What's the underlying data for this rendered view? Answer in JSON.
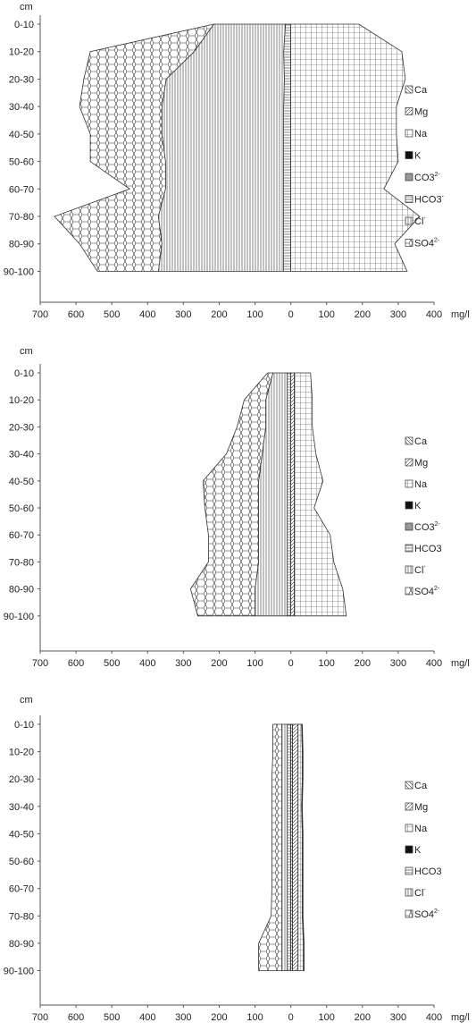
{
  "chart_data": [
    {
      "type": "area",
      "ylabel": "cm",
      "xlabel": "mg/l",
      "depths": [
        "0-10",
        "10-20",
        "20-30",
        "30-40",
        "40-50",
        "50-60",
        "60-70",
        "70-80",
        "80-90",
        "90-100"
      ],
      "xticks": [
        "700",
        "600",
        "500",
        "400",
        "300",
        "200",
        "100",
        "0",
        "100",
        "200",
        "300",
        "400"
      ],
      "xlim": [
        -700,
        400
      ],
      "cations": [
        {
          "name": "Ca",
          "values": [
            0,
            0,
            0,
            0,
            0,
            0,
            0,
            0,
            0,
            0
          ]
        },
        {
          "name": "Mg",
          "values": [
            0,
            0,
            0,
            0,
            0,
            0,
            0,
            0,
            0,
            0
          ]
        },
        {
          "name": "Na",
          "values": [
            190,
            310,
            320,
            295,
            295,
            300,
            260,
            360,
            290,
            325
          ]
        },
        {
          "name": "K",
          "values": [
            0,
            0,
            0,
            0,
            0,
            0,
            0,
            0,
            0,
            0
          ]
        }
      ],
      "anions": [
        {
          "name": "CO3",
          "values": [
            0,
            0,
            0,
            0,
            0,
            0,
            0,
            0,
            0,
            0
          ]
        },
        {
          "name": "HCO3",
          "values": [
            15,
            20,
            18,
            20,
            20,
            20,
            20,
            20,
            20,
            20
          ]
        },
        {
          "name": "Cl",
          "values": [
            200,
            250,
            330,
            340,
            340,
            330,
            330,
            350,
            340,
            350
          ]
        },
        {
          "name": "SO4",
          "values": [
            0,
            290,
            230,
            230,
            200,
            210,
            100,
            290,
            230,
            170
          ]
        }
      ],
      "legend": [
        {
          "label": "Ca",
          "pattern": "diag-back"
        },
        {
          "label": "Mg",
          "pattern": "diag-fwd"
        },
        {
          "label": "Na",
          "pattern": "grid"
        },
        {
          "label": "K",
          "pattern": "solid"
        },
        {
          "label": "CO3",
          "sup": "2-",
          "pattern": "gray"
        },
        {
          "label": "HCO3",
          "sup": "-",
          "pattern": "hlines"
        },
        {
          "label": "Cl",
          "sup": "-",
          "pattern": "vlines"
        },
        {
          "label": "SO4",
          "sup": "2-",
          "pattern": "hex"
        }
      ]
    },
    {
      "type": "area",
      "ylabel": "cm",
      "xlabel": "mg/l",
      "depths": [
        "0-10",
        "10-20",
        "20-30",
        "30-40",
        "40-50",
        "50-60",
        "60-70",
        "70-80",
        "80-90",
        "90-100"
      ],
      "xticks": [
        "700",
        "600",
        "500",
        "400",
        "300",
        "200",
        "100",
        "0",
        "100",
        "200",
        "300",
        "400"
      ],
      "xlim": [
        -700,
        400
      ],
      "cations": [
        {
          "name": "Ca",
          "values": [
            0,
            0,
            0,
            0,
            0,
            0,
            0,
            0,
            0,
            0
          ]
        },
        {
          "name": "Mg",
          "values": [
            10,
            10,
            10,
            10,
            10,
            10,
            10,
            10,
            10,
            10
          ]
        },
        {
          "name": "Na",
          "values": [
            45,
            50,
            50,
            60,
            80,
            55,
            100,
            110,
            135,
            145
          ]
        },
        {
          "name": "K",
          "values": [
            0,
            0,
            0,
            0,
            0,
            0,
            0,
            0,
            0,
            0
          ]
        }
      ],
      "anions": [
        {
          "name": "CO3",
          "values": [
            0,
            0,
            0,
            0,
            0,
            0,
            0,
            0,
            0,
            0
          ]
        },
        {
          "name": "HCO3",
          "values": [
            10,
            10,
            10,
            10,
            10,
            10,
            10,
            10,
            10,
            10
          ]
        },
        {
          "name": "Cl",
          "values": [
            40,
            60,
            60,
            70,
            80,
            80,
            80,
            80,
            90,
            90
          ]
        },
        {
          "name": "SO4",
          "values": [
            15,
            60,
            80,
            100,
            155,
            150,
            140,
            140,
            180,
            160
          ]
        }
      ],
      "legend": [
        {
          "label": "Ca",
          "pattern": "diag-back"
        },
        {
          "label": "Mg",
          "pattern": "diag-fwd"
        },
        {
          "label": "Na",
          "pattern": "grid"
        },
        {
          "label": "K",
          "pattern": "solid"
        },
        {
          "label": "CO3",
          "sup": "2-",
          "pattern": "gray"
        },
        {
          "label": "HCO3",
          "pattern": "hlines"
        },
        {
          "label": "Cl",
          "sup": "-",
          "pattern": "vlines"
        },
        {
          "label": "SO4",
          "sup": "2-",
          "pattern": "hex"
        }
      ]
    },
    {
      "type": "area",
      "ylabel": "cm",
      "xlabel": "mg/l",
      "depths": [
        "0-10",
        "10-20",
        "20-30",
        "30-40",
        "40-50",
        "50-60",
        "60-70",
        "70-80",
        "80-90",
        "90-100"
      ],
      "xticks": [
        "700",
        "600",
        "500",
        "400",
        "300",
        "200",
        "100",
        "0",
        "100",
        "200",
        "300",
        "400"
      ],
      "xlim": [
        -700,
        400
      ],
      "cations": [
        {
          "name": "Ca",
          "values": [
            5,
            5,
            5,
            5,
            5,
            5,
            5,
            5,
            5,
            5
          ]
        },
        {
          "name": "Mg",
          "values": [
            15,
            15,
            15,
            15,
            15,
            15,
            15,
            15,
            15,
            15
          ]
        },
        {
          "name": "Na",
          "values": [
            10,
            12,
            12,
            10,
            12,
            12,
            12,
            12,
            15,
            15
          ]
        },
        {
          "name": "K",
          "values": [
            2,
            2,
            2,
            2,
            2,
            2,
            2,
            2,
            2,
            2
          ]
        }
      ],
      "anions": [
        {
          "name": "HCO3",
          "values": [
            10,
            10,
            10,
            10,
            10,
            10,
            10,
            10,
            10,
            10
          ]
        },
        {
          "name": "Cl",
          "values": [
            15,
            15,
            15,
            15,
            15,
            15,
            15,
            15,
            15,
            15
          ]
        },
        {
          "name": "SO4",
          "values": [
            25,
            25,
            28,
            28,
            28,
            28,
            28,
            30,
            65,
            65
          ]
        }
      ],
      "legend": [
        {
          "label": "Ca",
          "pattern": "diag-back"
        },
        {
          "label": "Mg",
          "pattern": "diag-fwd"
        },
        {
          "label": "Na",
          "pattern": "grid"
        },
        {
          "label": "K",
          "pattern": "solid"
        },
        {
          "label": "HCO3",
          "pattern": "hlines"
        },
        {
          "label": "Cl",
          "sup": "-",
          "pattern": "vlines"
        },
        {
          "label": "SO4",
          "sup": "2-",
          "pattern": "hex"
        }
      ]
    }
  ]
}
